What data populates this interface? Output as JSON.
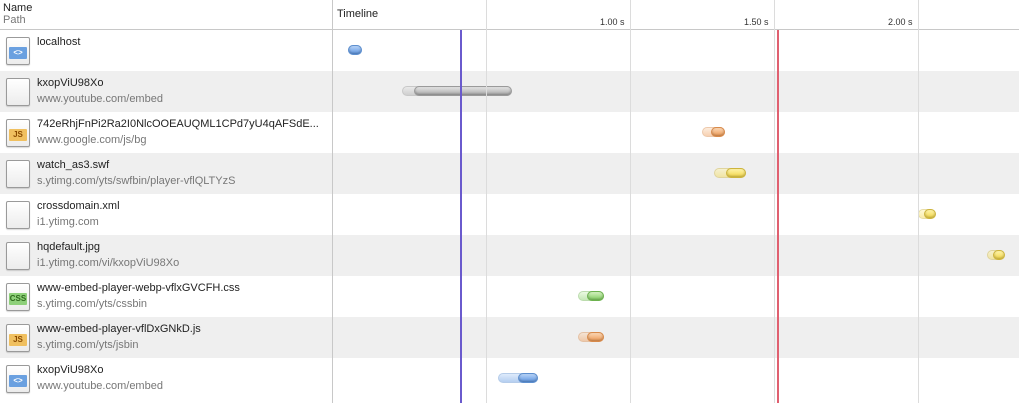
{
  "header": {
    "name_label": "Name",
    "path_label": "Path",
    "timeline_label": "Timeline"
  },
  "timeline": {
    "ticks": [
      "1.00 s",
      "1.50 s",
      "2.00 s"
    ],
    "tick_values": [
      1.0,
      1.5,
      2.0
    ],
    "dom_content_loaded": {
      "time": 0.41,
      "color": "#6a5acd"
    },
    "load_event": {
      "time": 1.51,
      "color": "#e06070"
    }
  },
  "rows": [
    {
      "name": "localhost",
      "path": "",
      "type": "html-icon",
      "badge": "<>",
      "color": "blue",
      "start": 0.02,
      "receive": 0.02,
      "end": 0.07
    },
    {
      "name": "kxopViU98Xo",
      "path": "www.youtube.com/embed",
      "type": "blank-icon",
      "badge": "",
      "color": "gray",
      "start": 0.21,
      "receive": 0.25,
      "end": 0.59
    },
    {
      "name": "742eRhjFnPi2Ra2I0NlcOOEAUQML1CPd7yU4qAFSdE...",
      "path": "www.google.com/js/bg",
      "type": "js-icon",
      "badge": "JS",
      "color": "orange",
      "start": 1.25,
      "receive": 1.28,
      "end": 1.33
    },
    {
      "name": "watch_as3.swf",
      "path": "s.ytimg.com/yts/swfbin/player-vflQLTYzS",
      "type": "blank-icon",
      "badge": "",
      "color": "yellow",
      "start": 1.29,
      "receive": 1.33,
      "end": 1.4
    },
    {
      "name": "crossdomain.xml",
      "path": "i1.ytimg.com",
      "type": "blank-icon",
      "badge": "",
      "color": "yellow",
      "start": 2.0,
      "receive": 2.02,
      "end": 2.06
    },
    {
      "name": "hqdefault.jpg",
      "path": "i1.ytimg.com/vi/kxopViU98Xo",
      "type": "blank-icon",
      "badge": "",
      "color": "yellow",
      "start": 2.24,
      "receive": 2.26,
      "end": 2.3
    },
    {
      "name": "www-embed-player-webp-vflxGVCFH.css",
      "path": "s.ytimg.com/yts/cssbin",
      "type": "css-icon",
      "badge": "CSS",
      "color": "green",
      "start": 0.82,
      "receive": 0.85,
      "end": 0.91
    },
    {
      "name": "www-embed-player-vflDxGNkD.js",
      "path": "s.ytimg.com/yts/jsbin",
      "type": "js-icon",
      "badge": "JS",
      "color": "orange",
      "start": 0.82,
      "receive": 0.85,
      "end": 0.91
    },
    {
      "name": "kxopViU98Xo",
      "path": "www.youtube.com/embed",
      "type": "html-icon",
      "badge": "<>",
      "color": "blue",
      "start": 0.54,
      "receive": 0.61,
      "end": 0.68
    }
  ]
}
